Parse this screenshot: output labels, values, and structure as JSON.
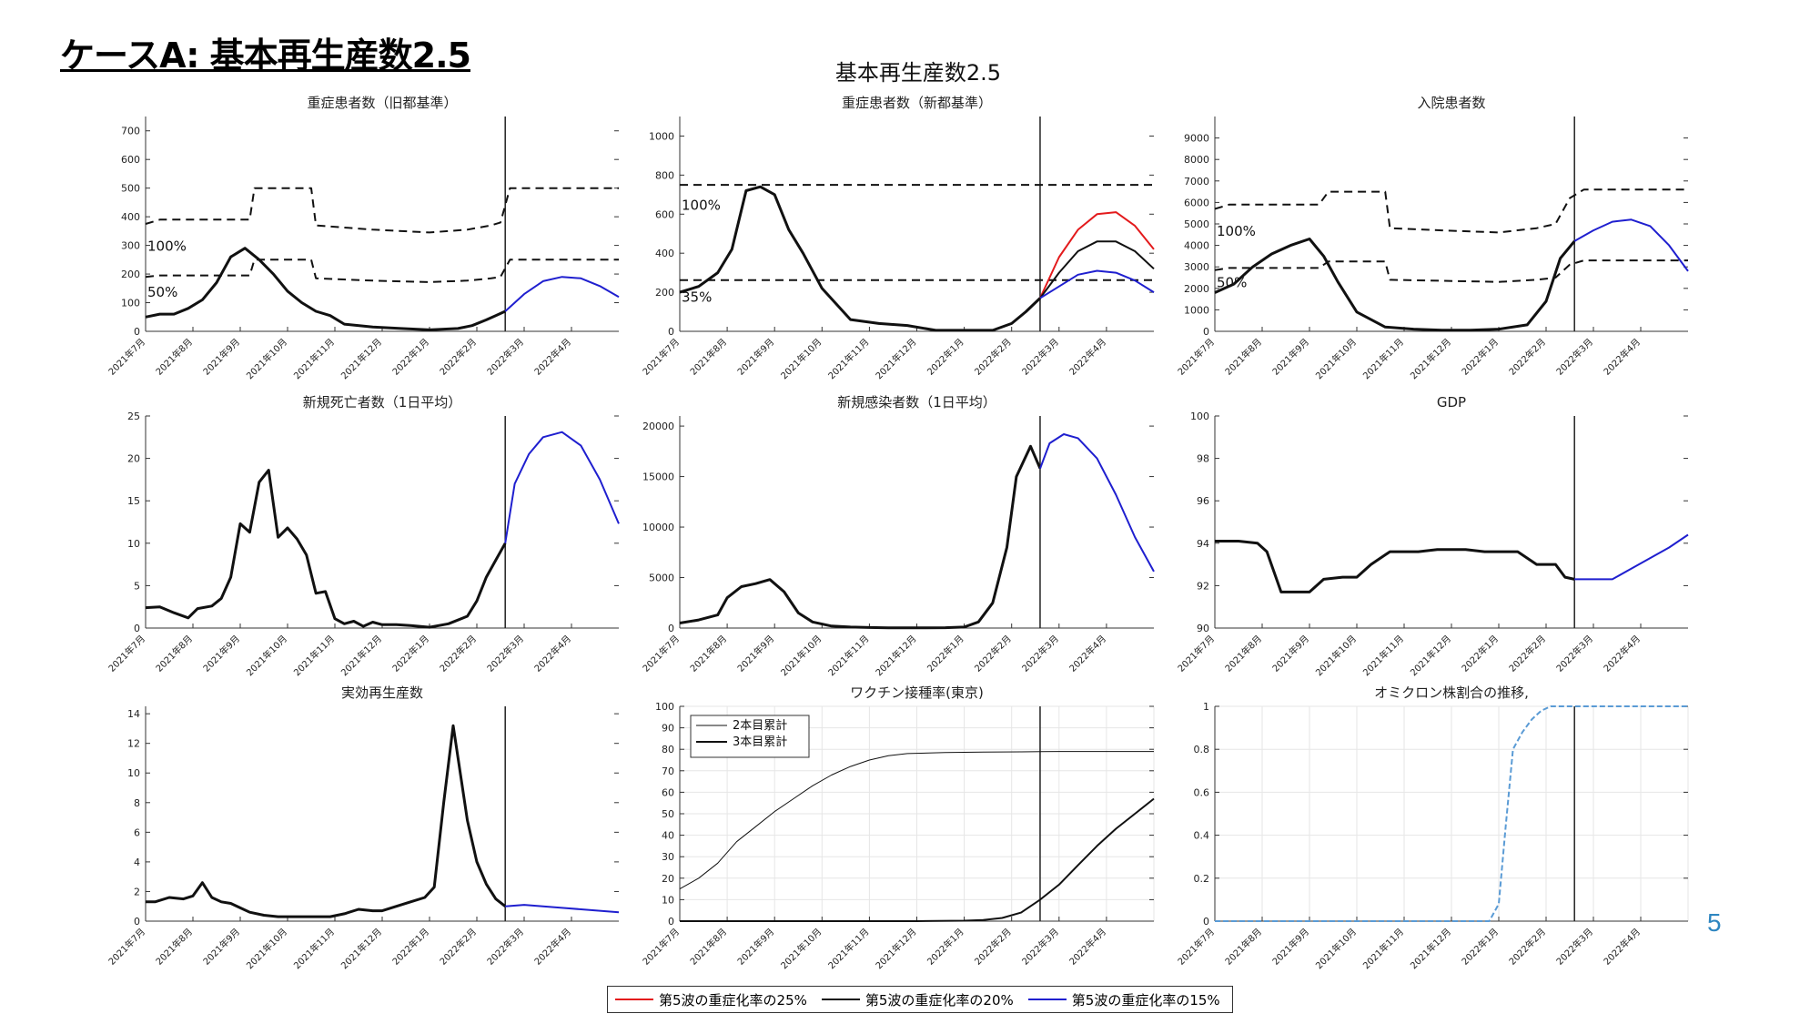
{
  "slide": {
    "title": "ケースA: 基本再生産数2.5",
    "figure_title": "基本再生産数2.5",
    "page_number": "5"
  },
  "colors": {
    "red": "#e31a1c",
    "black": "#111111",
    "blue": "#1f1fcf",
    "omicron": "#5a9bd5",
    "page_number": "#2e86c1"
  },
  "x_ticks": [
    "2021年7月",
    "2021年8月",
    "2021年9月",
    "2021年10月",
    "2021年11月",
    "2021年12月",
    "2022年1月",
    "2022年2月",
    "2022年3月",
    "2022年4月"
  ],
  "legend": [
    {
      "label": "第5波の重症化率の25%",
      "color": "#e31a1c"
    },
    {
      "label": "第5波の重症化率の20%",
      "color": "#111111"
    },
    {
      "label": "第5波の重症化率の15%",
      "color": "#1f1fcf"
    }
  ],
  "chart_data": [
    {
      "id": "severe-old",
      "type": "line",
      "title": "重症患者数（旧都基準）",
      "ylim": [
        0,
        750
      ],
      "yticks": [
        0,
        100,
        200,
        300,
        400,
        500,
        600,
        700
      ],
      "vline_month": 7.6,
      "grid": false,
      "annotations": [
        {
          "text": "100%",
          "x": 0.0,
          "y": 300
        },
        {
          "text": "50%",
          "x": 0.0,
          "y": 140
        }
      ],
      "series": [
        {
          "color": "black",
          "width": 3,
          "x": [
            0,
            0.3,
            0.6,
            0.9,
            1.2,
            1.5,
            1.8,
            2.1,
            2.4,
            2.7,
            3.0,
            3.3,
            3.6,
            3.9,
            4.2,
            4.8,
            5.4,
            6.0,
            6.6,
            6.9,
            7.2,
            7.4,
            7.6
          ],
          "y": [
            50,
            60,
            60,
            80,
            110,
            170,
            260,
            290,
            250,
            200,
            140,
            100,
            70,
            55,
            25,
            15,
            10,
            5,
            10,
            20,
            40,
            55,
            70
          ]
        },
        {
          "color": "black",
          "width": 2,
          "dash": "9,6",
          "x": [
            0,
            0.3,
            2.2,
            2.3,
            3.5,
            3.6,
            4.8,
            6.0,
            6.8,
            7.3,
            7.5,
            7.7,
            10.0
          ],
          "y": [
            375,
            390,
            390,
            500,
            500,
            370,
            355,
            345,
            355,
            370,
            380,
            500,
            500
          ]
        },
        {
          "color": "black",
          "width": 2,
          "dash": "9,6",
          "x": [
            0,
            0.3,
            2.2,
            2.3,
            3.5,
            3.6,
            4.8,
            6.0,
            6.8,
            7.3,
            7.5,
            7.7,
            10.0
          ],
          "y": [
            190,
            195,
            195,
            250,
            250,
            185,
            177,
            172,
            177,
            185,
            190,
            250,
            250
          ]
        },
        {
          "color": "blue",
          "width": 2,
          "x": [
            7.6,
            8.0,
            8.4,
            8.8,
            9.2,
            9.6,
            10.0
          ],
          "y": [
            70,
            130,
            175,
            190,
            185,
            158,
            120
          ]
        }
      ]
    },
    {
      "id": "severe-new",
      "type": "line",
      "title": "重症患者数（新都基準）",
      "ylim": [
        0,
        1100
      ],
      "yticks": [
        0,
        200,
        400,
        600,
        800,
        1000
      ],
      "vline_month": 7.6,
      "grid": false,
      "annotations": [
        {
          "text": "100%",
          "x": 0.0,
          "y": 650
        },
        {
          "text": "35%",
          "x": 0.0,
          "y": 180
        }
      ],
      "series": [
        {
          "color": "black",
          "width": 3,
          "x": [
            0,
            0.4,
            0.8,
            1.1,
            1.4,
            1.7,
            2.0,
            2.3,
            2.6,
            3.0,
            3.6,
            4.2,
            4.8,
            5.4,
            6.0,
            6.6,
            7.0,
            7.3,
            7.6
          ],
          "y": [
            200,
            230,
            300,
            420,
            720,
            740,
            700,
            520,
            400,
            220,
            60,
            40,
            30,
            5,
            5,
            5,
            40,
            100,
            170
          ]
        },
        {
          "color": "black",
          "width": 2,
          "dash": "9,6",
          "x": [
            0,
            10
          ],
          "y": [
            750,
            750
          ]
        },
        {
          "color": "black",
          "width": 2,
          "dash": "9,6",
          "x": [
            0,
            10
          ],
          "y": [
            262,
            262
          ]
        },
        {
          "color": "red",
          "width": 2,
          "x": [
            7.6,
            8.0,
            8.4,
            8.8,
            9.2,
            9.6,
            10.0
          ],
          "y": [
            170,
            380,
            520,
            600,
            610,
            540,
            420
          ]
        },
        {
          "color": "black",
          "width": 2,
          "x": [
            7.6,
            8.0,
            8.4,
            8.8,
            9.2,
            9.6,
            10.0
          ],
          "y": [
            170,
            300,
            410,
            460,
            460,
            410,
            320
          ]
        },
        {
          "color": "blue",
          "width": 2,
          "x": [
            7.6,
            8.0,
            8.4,
            8.8,
            9.2,
            9.6,
            10.0
          ],
          "y": [
            170,
            230,
            290,
            310,
            300,
            260,
            200
          ]
        }
      ]
    },
    {
      "id": "hospitalized",
      "type": "line",
      "title": "入院患者数",
      "ylim": [
        0,
        10000
      ],
      "yticks": [
        0,
        1000,
        2000,
        3000,
        4000,
        5000,
        6000,
        7000,
        8000,
        9000
      ],
      "vline_month": 7.6,
      "grid": false,
      "annotations": [
        {
          "text": "100%",
          "x": 0.0,
          "y": 4700
        },
        {
          "text": "50%",
          "x": 0.0,
          "y": 2300
        }
      ],
      "series": [
        {
          "color": "black",
          "width": 3,
          "x": [
            0,
            0.4,
            0.8,
            1.2,
            1.6,
            2.0,
            2.3,
            2.6,
            3.0,
            3.6,
            4.2,
            4.8,
            5.4,
            6.0,
            6.6,
            7.0,
            7.3,
            7.6
          ],
          "y": [
            1800,
            2200,
            3000,
            3600,
            4000,
            4300,
            3500,
            2300,
            900,
            200,
            100,
            50,
            50,
            100,
            300,
            1400,
            3400,
            4200
          ]
        },
        {
          "color": "black",
          "width": 2,
          "dash": "9,6",
          "x": [
            0,
            0.3,
            2.2,
            2.4,
            3.6,
            3.7,
            4.8,
            6.0,
            6.8,
            7.2,
            7.5,
            7.8,
            10.0
          ],
          "y": [
            5700,
            5900,
            5900,
            6500,
            6500,
            4800,
            4700,
            4600,
            4800,
            5000,
            6200,
            6600,
            6600
          ]
        },
        {
          "color": "black",
          "width": 2,
          "dash": "9,6",
          "x": [
            0,
            0.3,
            2.2,
            2.4,
            3.6,
            3.7,
            4.8,
            6.0,
            6.8,
            7.2,
            7.5,
            7.8,
            10.0
          ],
          "y": [
            2850,
            2950,
            2950,
            3250,
            3250,
            2400,
            2350,
            2300,
            2400,
            2500,
            3100,
            3300,
            3300
          ]
        },
        {
          "color": "blue",
          "width": 2,
          "x": [
            7.6,
            8.0,
            8.4,
            8.8,
            9.2,
            9.6,
            10.0
          ],
          "y": [
            4200,
            4700,
            5100,
            5200,
            4900,
            4000,
            2800
          ]
        }
      ]
    },
    {
      "id": "deaths",
      "type": "line",
      "title": "新規死亡者数（1日平均）",
      "ylim": [
        0,
        25
      ],
      "yticks": [
        0,
        5,
        10,
        15,
        20,
        25
      ],
      "vline_month": 7.6,
      "grid": false,
      "series": [
        {
          "color": "black",
          "width": 3,
          "x": [
            0,
            0.3,
            0.6,
            0.9,
            1.1,
            1.4,
            1.6,
            1.8,
            2.0,
            2.2,
            2.4,
            2.6,
            2.8,
            3.0,
            3.2,
            3.4,
            3.6,
            3.8,
            4.0,
            4.2,
            4.4,
            4.6,
            4.8,
            5.0,
            5.3,
            5.6,
            6.0,
            6.4,
            6.8,
            7.0,
            7.2,
            7.4,
            7.6
          ],
          "y": [
            2.4,
            2.5,
            1.8,
            1.2,
            2.3,
            2.6,
            3.5,
            6,
            12.3,
            11.3,
            17.2,
            18.6,
            10.7,
            11.8,
            10.5,
            8.6,
            4.1,
            4.3,
            1.1,
            0.5,
            0.8,
            0.2,
            0.7,
            0.4,
            0.4,
            0.3,
            0.1,
            0.5,
            1.4,
            3.2,
            6,
            8,
            10
          ]
        },
        {
          "color": "blue",
          "width": 2,
          "x": [
            7.6,
            7.8,
            8.1,
            8.4,
            8.8,
            9.2,
            9.6,
            10.0
          ],
          "y": [
            10,
            17,
            20.5,
            22.5,
            23.1,
            21.5,
            17.5,
            12.3
          ]
        }
      ]
    },
    {
      "id": "cases",
      "type": "line",
      "title": "新規感染者数（1日平均）",
      "ylim": [
        0,
        21000
      ],
      "yticks": [
        0,
        5000,
        10000,
        15000,
        20000
      ],
      "vline_month": 7.6,
      "grid": false,
      "series": [
        {
          "color": "black",
          "width": 3,
          "x": [
            0,
            0.4,
            0.8,
            1.0,
            1.3,
            1.6,
            1.9,
            2.2,
            2.5,
            2.8,
            3.2,
            3.6,
            4.0,
            4.4,
            4.8,
            5.2,
            5.6,
            6.0,
            6.3,
            6.6,
            6.9,
            7.1,
            7.4,
            7.6
          ],
          "y": [
            500,
            800,
            1300,
            3000,
            4100,
            4400,
            4800,
            3600,
            1500,
            600,
            200,
            100,
            50,
            30,
            30,
            30,
            40,
            100,
            600,
            2500,
            8000,
            15000,
            18000,
            15800
          ]
        },
        {
          "color": "blue",
          "width": 2,
          "x": [
            7.6,
            7.8,
            8.1,
            8.4,
            8.8,
            9.2,
            9.6,
            10.0
          ],
          "y": [
            15800,
            18300,
            19200,
            18800,
            16800,
            13200,
            9000,
            5600
          ]
        }
      ]
    },
    {
      "id": "gdp",
      "type": "line",
      "title": "GDP",
      "ylim": [
        90,
        100
      ],
      "yticks": [
        90,
        92,
        94,
        96,
        98,
        100
      ],
      "vline_month": 7.6,
      "grid": false,
      "series": [
        {
          "color": "black",
          "width": 3,
          "x": [
            0,
            0.5,
            0.9,
            1.1,
            1.4,
            1.8,
            2.0,
            2.3,
            2.7,
            3.0,
            3.3,
            3.7,
            4.0,
            4.3,
            4.7,
            5.0,
            5.3,
            5.7,
            6.0,
            6.4,
            6.8,
            7.0,
            7.2,
            7.4,
            7.6
          ],
          "y": [
            94.1,
            94.1,
            94.0,
            93.6,
            91.7,
            91.7,
            91.7,
            92.3,
            92.4,
            92.4,
            93.0,
            93.6,
            93.6,
            93.6,
            93.7,
            93.7,
            93.7,
            93.6,
            93.6,
            93.6,
            93.0,
            93.0,
            93.0,
            92.4,
            92.3
          ]
        },
        {
          "color": "blue",
          "width": 2,
          "x": [
            7.6,
            8.0,
            8.4,
            8.8,
            9.2,
            9.6,
            10.0
          ],
          "y": [
            92.3,
            92.3,
            92.3,
            92.8,
            93.3,
            93.8,
            94.4
          ]
        }
      ]
    },
    {
      "id": "reproduction",
      "type": "line",
      "title": "実効再生産数",
      "ylim": [
        0,
        14.5
      ],
      "yticks": [
        0,
        2,
        4,
        6,
        8,
        10,
        12,
        14
      ],
      "vline_month": 7.6,
      "grid": false,
      "series": [
        {
          "color": "black",
          "width": 3,
          "x": [
            0,
            0.2,
            0.5,
            0.8,
            1.0,
            1.2,
            1.4,
            1.6,
            1.8,
            2.0,
            2.2,
            2.5,
            2.8,
            3.0,
            3.3,
            3.6,
            3.9,
            4.2,
            4.5,
            4.8,
            5.0,
            5.3,
            5.6,
            5.9,
            6.1,
            6.3,
            6.5,
            6.8,
            7.0,
            7.2,
            7.4,
            7.6
          ],
          "y": [
            1.3,
            1.3,
            1.6,
            1.5,
            1.7,
            2.6,
            1.6,
            1.3,
            1.2,
            0.9,
            0.6,
            0.4,
            0.3,
            0.3,
            0.3,
            0.3,
            0.3,
            0.5,
            0.8,
            0.7,
            0.7,
            1.0,
            1.3,
            1.6,
            2.3,
            8.0,
            13.2,
            6.8,
            4.0,
            2.5,
            1.5,
            1.0
          ]
        },
        {
          "color": "blue",
          "width": 2,
          "x": [
            7.6,
            8.0,
            8.4,
            8.8,
            9.2,
            9.6,
            10.0
          ],
          "y": [
            1.0,
            1.1,
            1.0,
            0.9,
            0.8,
            0.7,
            0.6
          ]
        }
      ]
    },
    {
      "id": "vaccination",
      "type": "line",
      "title": "ワクチン接種率(東京)",
      "ylim": [
        0,
        100
      ],
      "yticks": [
        0,
        10,
        20,
        30,
        40,
        50,
        60,
        70,
        80,
        90,
        100
      ],
      "vline_month": 7.6,
      "grid": true,
      "inline_legend": [
        "2本目累計",
        "3本目累計"
      ],
      "series": [
        {
          "color": "black",
          "width": 1,
          "x": [
            0,
            0.4,
            0.8,
            1.2,
            1.6,
            2.0,
            2.4,
            2.8,
            3.2,
            3.6,
            4.0,
            4.4,
            4.8,
            5.6,
            6.4,
            7.2,
            8.0,
            9.0,
            10.0
          ],
          "y": [
            15,
            20,
            27,
            37,
            44,
            51,
            57,
            63,
            68,
            72,
            75,
            77,
            78,
            78.5,
            78.7,
            78.8,
            79,
            79,
            79
          ]
        },
        {
          "color": "black",
          "width": 2,
          "x": [
            0,
            1,
            2,
            3,
            4,
            5,
            6,
            6.4,
            6.8,
            7.2,
            7.6,
            8.0,
            8.4,
            8.8,
            9.2,
            9.6,
            10.0
          ],
          "y": [
            0,
            0,
            0,
            0,
            0,
            0,
            0.2,
            0.5,
            1.5,
            4,
            10,
            17,
            26,
            35,
            43,
            50,
            57
          ]
        }
      ]
    },
    {
      "id": "omicron",
      "type": "line",
      "title": "オミクロン株割合の推移,",
      "ylim": [
        0,
        1
      ],
      "yticks": [
        0,
        0.2,
        0.4,
        0.6,
        0.8,
        1
      ],
      "vline_month": 7.6,
      "grid": true,
      "series": [
        {
          "color": "omicron",
          "width": 2,
          "dash": "6,3",
          "x": [
            0,
            1,
            2,
            3,
            4,
            5,
            5.8,
            6.0,
            6.15,
            6.3,
            6.5,
            6.7,
            6.9,
            7.1,
            7.3,
            8,
            9,
            10
          ],
          "y": [
            0,
            0,
            0,
            0,
            0,
            0,
            0,
            0.08,
            0.45,
            0.8,
            0.88,
            0.94,
            0.98,
            1,
            1,
            1,
            1,
            1
          ]
        }
      ]
    }
  ]
}
